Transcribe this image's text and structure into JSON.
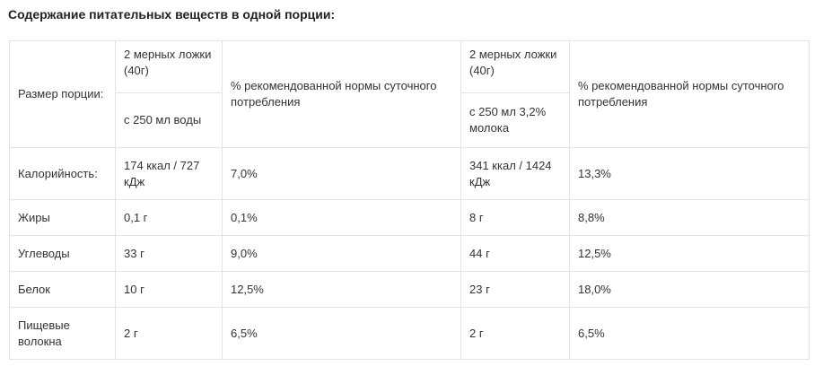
{
  "heading": "Содержание питательных веществ в одной порции:",
  "table": {
    "header": {
      "serving_label": "Размер порции:",
      "water": {
        "amount": "2 мерных ложки (40г)",
        "with": "с 250 мл воды",
        "percent_label": "% рекомендованной нормы суточного потребления"
      },
      "milk": {
        "amount": "2 мерных ложки (40г)",
        "with": "с 250 мл 3,2% молока",
        "percent_label": "% рекомендованной нормы суточного потребления"
      }
    },
    "rows": [
      {
        "name": "Калорийность:",
        "water_value": "174 ккал / 727 кДж",
        "water_pct": "7,0%",
        "milk_value": "341 ккал / 1424 кДж",
        "milk_pct": "13,3%"
      },
      {
        "name": "Жиры",
        "water_value": "0,1 г",
        "water_pct": "0,1%",
        "milk_value": "8 г",
        "milk_pct": "8,8%"
      },
      {
        "name": "Углеводы",
        "water_value": "33 г",
        "water_pct": "9,0%",
        "milk_value": "44 г",
        "milk_pct": "12,5%"
      },
      {
        "name": "Белок",
        "water_value": "10 г",
        "water_pct": "12,5%",
        "milk_value": "23 г",
        "milk_pct": "18,0%"
      },
      {
        "name": "Пищевые волокна",
        "water_value": "2 г",
        "water_pct": "6,5%",
        "milk_value": "2 г",
        "milk_pct": "6,5%"
      }
    ]
  }
}
